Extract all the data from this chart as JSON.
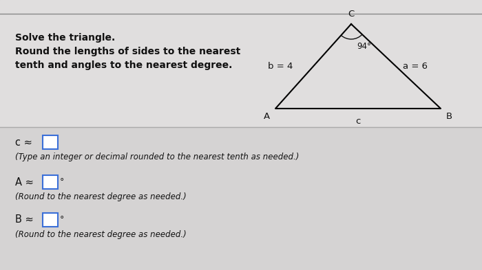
{
  "bg_color": "#c8c8c8",
  "top_section_bg": "#e0dede",
  "bottom_section_bg": "#d5d3d3",
  "title_line1": "Solve the triangle.",
  "title_line2": "Round the lengths of sides to the nearest",
  "title_line3": "tenth and angles to the nearest degree.",
  "triangle_label_b": "b = 4",
  "triangle_label_a": "a = 6",
  "triangle_angle": "94",
  "triangle_vertex_C": "C",
  "triangle_vertex_A": "A",
  "triangle_vertex_B": "B",
  "triangle_side_c": "c",
  "line1_prefix": "c ≈",
  "line1_sub": "(Type an integer or decimal rounded to the nearest tenth as needed.)",
  "line2_prefix": "A ≈",
  "line2_degree": "°",
  "line2_sub": "(Round to the nearest degree as needed.)",
  "line3_prefix": "B ≈",
  "line3_degree": "°",
  "line3_sub": "(Round to the nearest degree as needed.)",
  "text_color": "#111111",
  "box_color": "#ffffff",
  "box_border_color": "#3a6fd8",
  "separator_color": "#aaaaaa",
  "top_border_color": "#888888"
}
